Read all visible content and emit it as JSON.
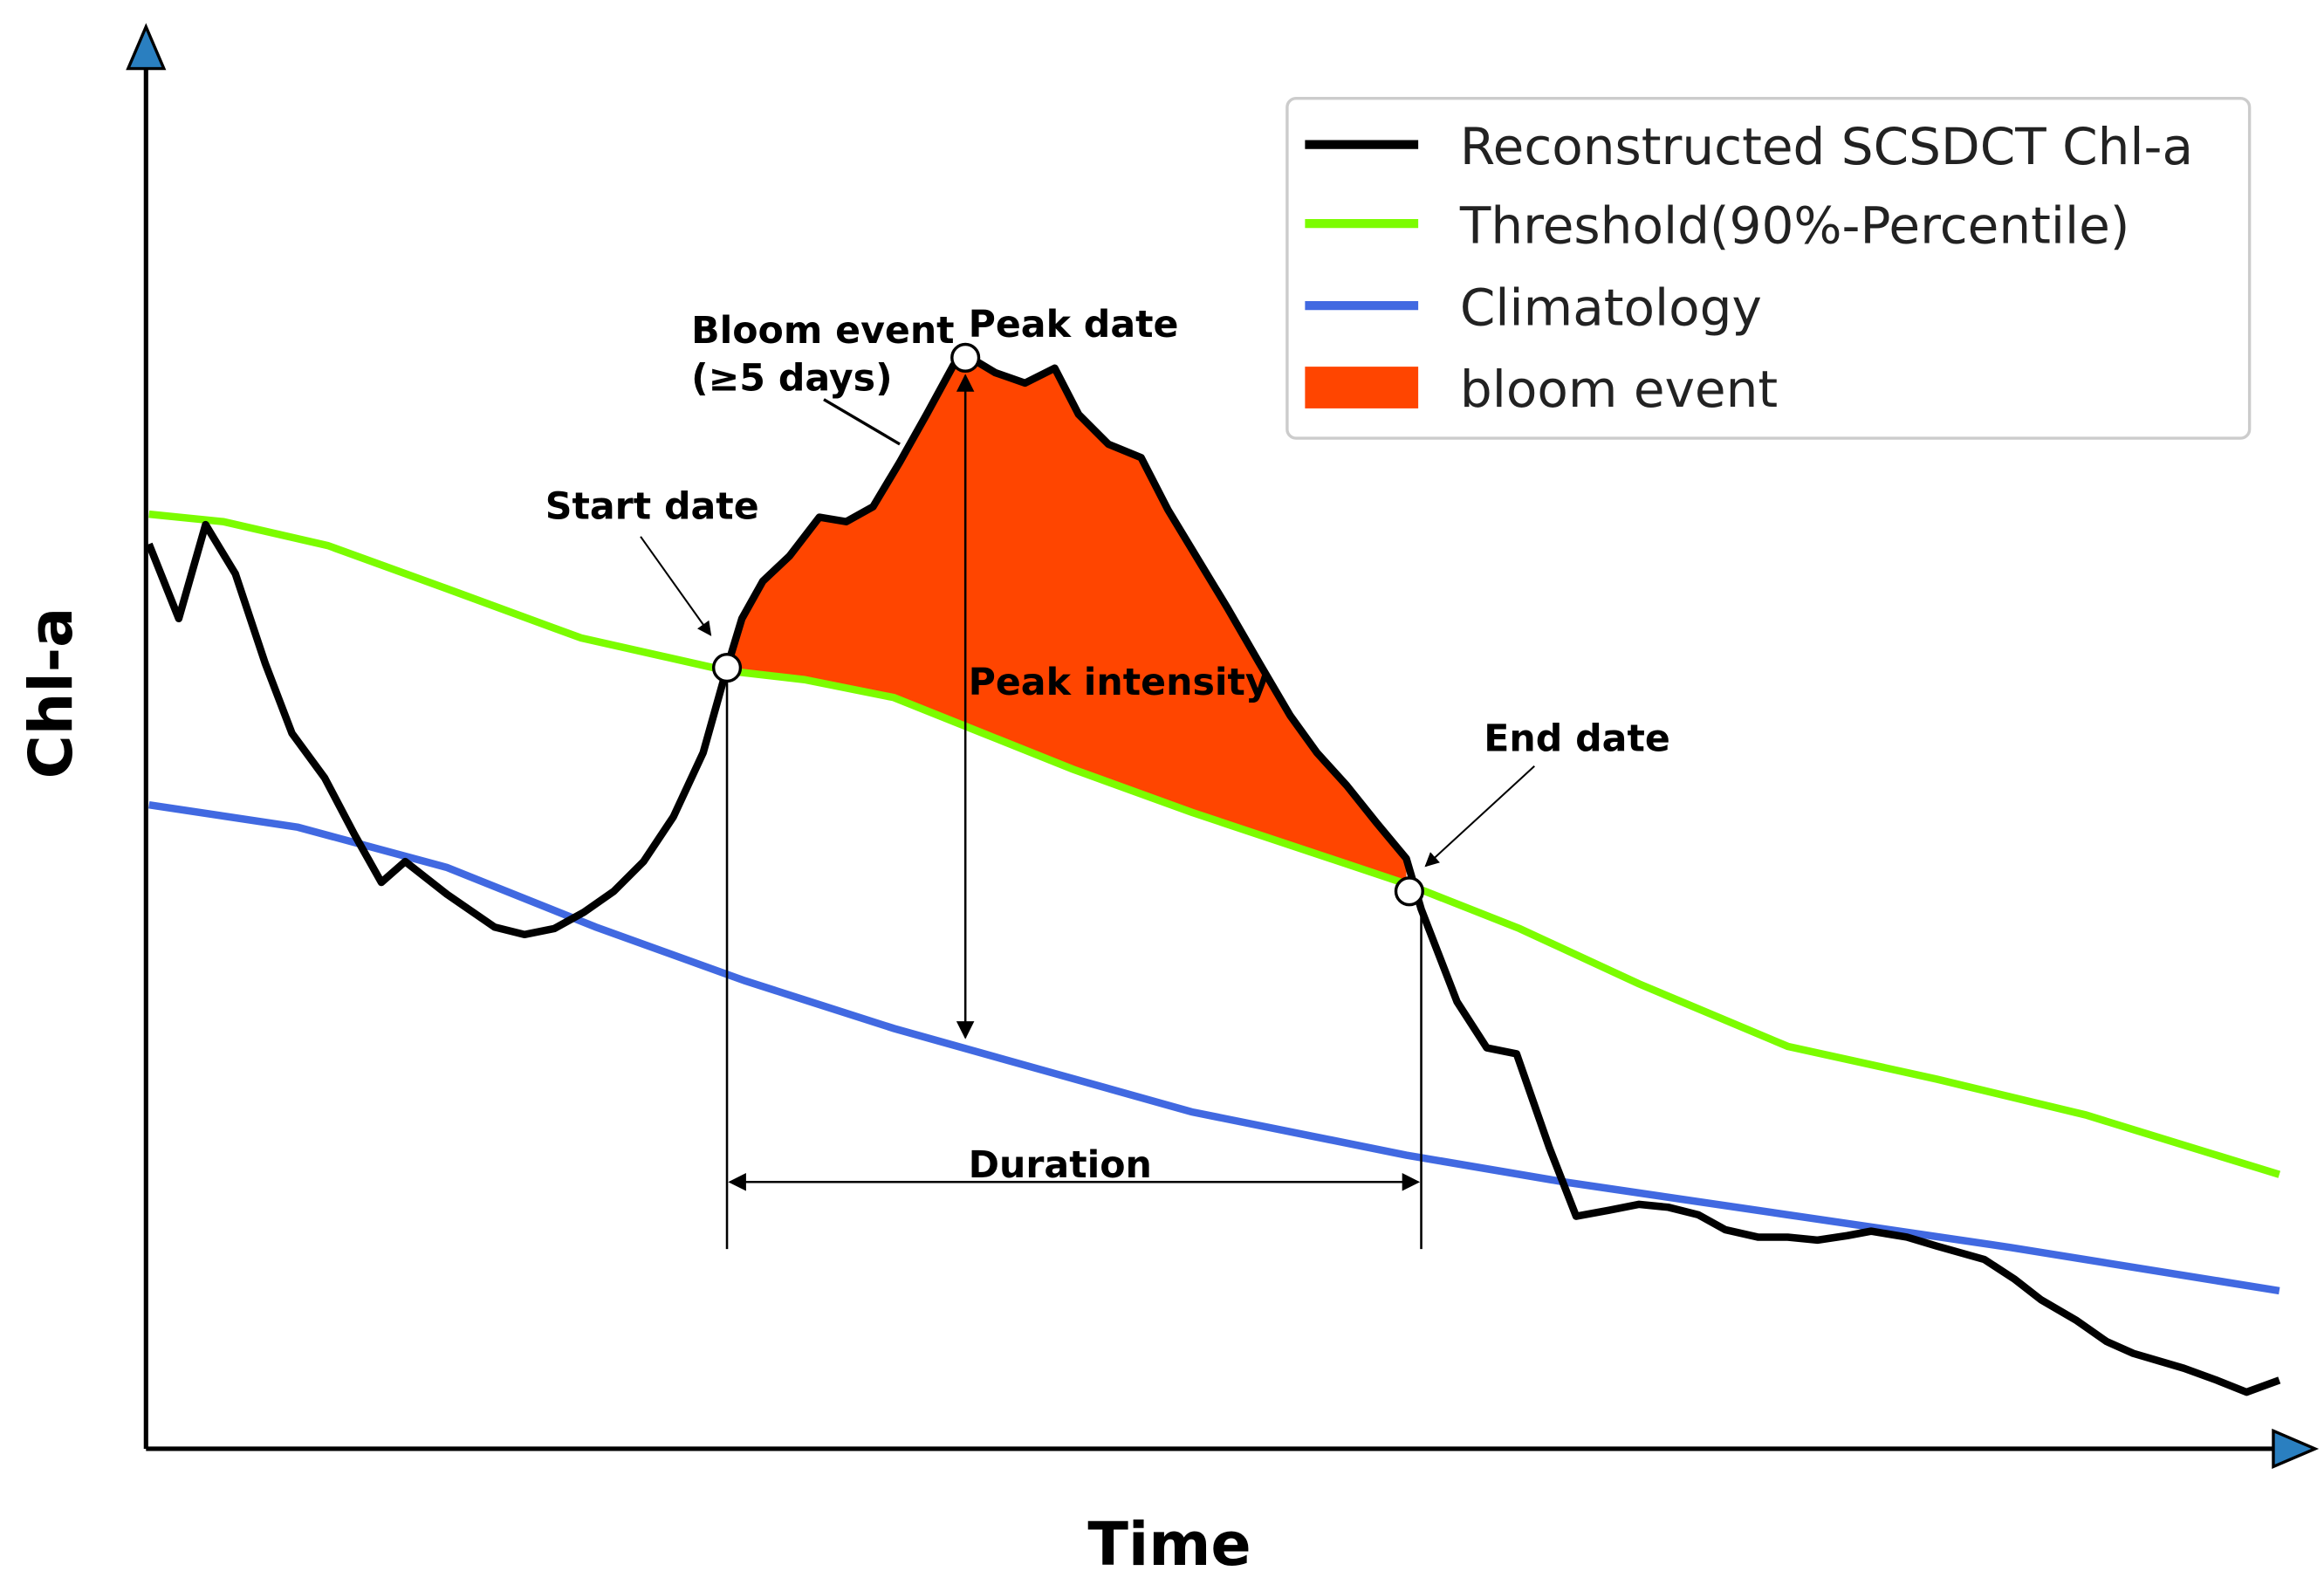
{
  "axes": {
    "y_label": "Chl-a",
    "x_label": "Time"
  },
  "legend": [
    {
      "label": "Reconstructed SCSDCT Chl-a"
    },
    {
      "label": "Threshold(90%-Percentile)"
    },
    {
      "label": "Climatology"
    },
    {
      "label": "bloom event"
    }
  ],
  "annotations": {
    "bloom_event": "Bloom event",
    "bloom_event_note": "(≥5 days)",
    "peak_date": "Peak date",
    "start_date": "Start date",
    "peak_intensity": "Peak intensity",
    "end_date": "End date",
    "duration": "Duration"
  }
}
